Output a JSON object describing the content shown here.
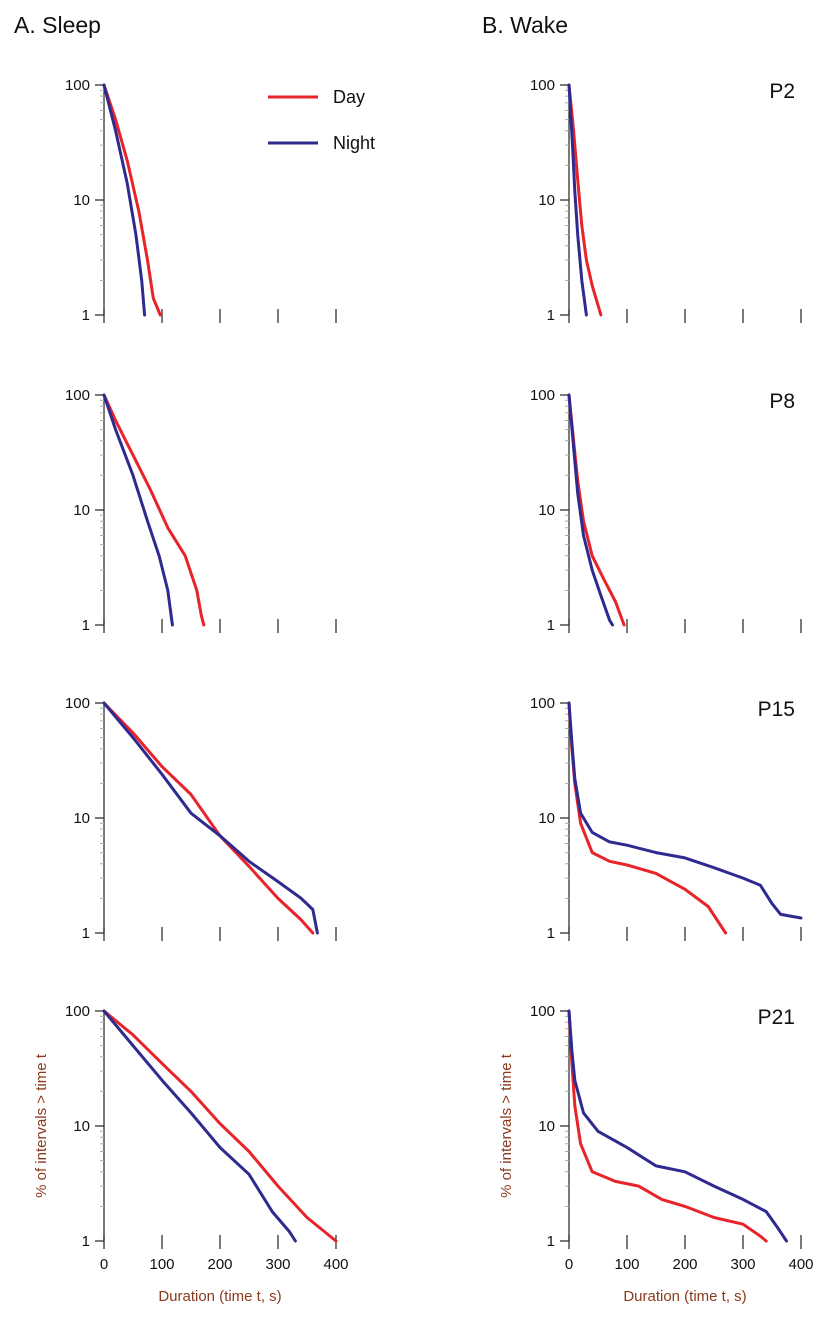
{
  "figure": {
    "column_titles": [
      "A. Sleep",
      "B. Wake"
    ],
    "legend": [
      {
        "label": "Day",
        "color": "#e8232a"
      },
      {
        "label": "Night",
        "color": "#2e2a8f"
      }
    ]
  },
  "chart_data": [
    {
      "type": "line",
      "panel": "A",
      "row": 0,
      "label": "",
      "xlim": [
        0,
        400
      ],
      "ylim": [
        1,
        100
      ],
      "yscale": "log",
      "xticks": [
        0,
        100,
        200,
        300,
        400
      ],
      "yticks": [
        1,
        10,
        100
      ],
      "xtick_labels": [
        "",
        "",
        "",
        "",
        ""
      ],
      "ytick_labels": [
        "1",
        "10",
        "100"
      ],
      "xlabel": "",
      "ylabel": "",
      "series": [
        {
          "name": "Day",
          "color": "#e8232a",
          "points": [
            [
              0,
              100
            ],
            [
              20,
              50
            ],
            [
              40,
              22
            ],
            [
              60,
              8
            ],
            [
              75,
              3
            ],
            [
              85,
              1.4
            ],
            [
              97,
              1
            ]
          ]
        },
        {
          "name": "Night",
          "color": "#2e2a8f",
          "points": [
            [
              0,
              100
            ],
            [
              20,
              40
            ],
            [
              40,
              14
            ],
            [
              55,
              5
            ],
            [
              65,
              2
            ],
            [
              70,
              1
            ]
          ]
        }
      ]
    },
    {
      "type": "line",
      "panel": "B",
      "row": 0,
      "label": "P2",
      "xlim": [
        0,
        400
      ],
      "ylim": [
        1,
        100
      ],
      "yscale": "log",
      "xticks": [
        0,
        100,
        200,
        300,
        400
      ],
      "yticks": [
        1,
        10,
        100
      ],
      "xtick_labels": [
        "",
        "",
        "",
        "",
        ""
      ],
      "ytick_labels": [
        "1",
        "10",
        "100"
      ],
      "xlabel": "",
      "ylabel": "",
      "series": [
        {
          "name": "Day",
          "color": "#e8232a",
          "points": [
            [
              0,
              100
            ],
            [
              8,
              40
            ],
            [
              15,
              15
            ],
            [
              22,
              6
            ],
            [
              30,
              3
            ],
            [
              40,
              1.8
            ],
            [
              55,
              1
            ]
          ]
        },
        {
          "name": "Night",
          "color": "#2e2a8f",
          "points": [
            [
              0,
              100
            ],
            [
              6,
              30
            ],
            [
              10,
              12
            ],
            [
              15,
              5
            ],
            [
              22,
              2
            ],
            [
              30,
              1
            ]
          ]
        }
      ]
    },
    {
      "type": "line",
      "panel": "A",
      "row": 1,
      "label": "",
      "xlim": [
        0,
        400
      ],
      "ylim": [
        1,
        100
      ],
      "yscale": "log",
      "xticks": [
        0,
        100,
        200,
        300,
        400
      ],
      "yticks": [
        1,
        10,
        100
      ],
      "xtick_labels": [
        "",
        "",
        "",
        "",
        ""
      ],
      "ytick_labels": [
        "1",
        "10",
        "100"
      ],
      "xlabel": "",
      "ylabel": "",
      "series": [
        {
          "name": "Day",
          "color": "#e8232a",
          "points": [
            [
              0,
              100
            ],
            [
              20,
              60
            ],
            [
              50,
              30
            ],
            [
              80,
              15
            ],
            [
              110,
              7
            ],
            [
              140,
              4
            ],
            [
              160,
              2
            ],
            [
              168,
              1.2
            ],
            [
              172,
              1
            ]
          ]
        },
        {
          "name": "Night",
          "color": "#2e2a8f",
          "points": [
            [
              0,
              100
            ],
            [
              20,
              50
            ],
            [
              50,
              20
            ],
            [
              75,
              8
            ],
            [
              95,
              4
            ],
            [
              110,
              2
            ],
            [
              118,
              1
            ]
          ]
        }
      ]
    },
    {
      "type": "line",
      "panel": "B",
      "row": 1,
      "label": "P8",
      "xlim": [
        0,
        400
      ],
      "ylim": [
        1,
        100
      ],
      "yscale": "log",
      "xticks": [
        0,
        100,
        200,
        300,
        400
      ],
      "yticks": [
        1,
        10,
        100
      ],
      "xtick_labels": [
        "",
        "",
        "",
        "",
        ""
      ],
      "ytick_labels": [
        "1",
        "10",
        "100"
      ],
      "xlabel": "",
      "ylabel": "",
      "series": [
        {
          "name": "Day",
          "color": "#e8232a",
          "points": [
            [
              0,
              100
            ],
            [
              8,
              40
            ],
            [
              15,
              18
            ],
            [
              25,
              8
            ],
            [
              40,
              4
            ],
            [
              60,
              2.5
            ],
            [
              80,
              1.6
            ],
            [
              95,
              1
            ]
          ]
        },
        {
          "name": "Night",
          "color": "#2e2a8f",
          "points": [
            [
              0,
              100
            ],
            [
              8,
              35
            ],
            [
              15,
              14
            ],
            [
              25,
              6
            ],
            [
              40,
              3
            ],
            [
              55,
              1.8
            ],
            [
              70,
              1.1
            ],
            [
              75,
              1
            ]
          ]
        }
      ]
    },
    {
      "type": "line",
      "panel": "A",
      "row": 2,
      "label": "",
      "xlim": [
        0,
        400
      ],
      "ylim": [
        1,
        100
      ],
      "yscale": "log",
      "xticks": [
        0,
        100,
        200,
        300,
        400
      ],
      "yticks": [
        1,
        10,
        100
      ],
      "xtick_labels": [
        "",
        "",
        "",
        "",
        ""
      ],
      "ytick_labels": [
        "1",
        "10",
        "100"
      ],
      "xlabel": "",
      "ylabel": "",
      "series": [
        {
          "name": "Day",
          "color": "#e8232a",
          "points": [
            [
              0,
              100
            ],
            [
              50,
              55
            ],
            [
              100,
              28
            ],
            [
              150,
              16
            ],
            [
              200,
              7
            ],
            [
              250,
              3.8
            ],
            [
              300,
              2
            ],
            [
              340,
              1.3
            ],
            [
              360,
              1
            ]
          ]
        },
        {
          "name": "Night",
          "color": "#2e2a8f",
          "points": [
            [
              0,
              100
            ],
            [
              50,
              50
            ],
            [
              100,
              24
            ],
            [
              150,
              11
            ],
            [
              200,
              7
            ],
            [
              250,
              4.2
            ],
            [
              300,
              2.8
            ],
            [
              340,
              2
            ],
            [
              360,
              1.6
            ],
            [
              368,
              1
            ]
          ]
        }
      ]
    },
    {
      "type": "line",
      "panel": "B",
      "row": 2,
      "label": "P15",
      "xlim": [
        0,
        400
      ],
      "ylim": [
        1,
        100
      ],
      "yscale": "log",
      "xticks": [
        0,
        100,
        200,
        300,
        400
      ],
      "yticks": [
        1,
        10,
        100
      ],
      "xtick_labels": [
        "",
        "",
        "",
        "",
        ""
      ],
      "ytick_labels": [
        "1",
        "10",
        "100"
      ],
      "xlabel": "",
      "ylabel": "",
      "series": [
        {
          "name": "Day",
          "color": "#e8232a",
          "points": [
            [
              0,
              100
            ],
            [
              5,
              40
            ],
            [
              10,
              20
            ],
            [
              20,
              9
            ],
            [
              40,
              5
            ],
            [
              70,
              4.2
            ],
            [
              100,
              3.9
            ],
            [
              150,
              3.3
            ],
            [
              200,
              2.4
            ],
            [
              240,
              1.7
            ],
            [
              270,
              1
            ]
          ]
        },
        {
          "name": "Night",
          "color": "#2e2a8f",
          "points": [
            [
              0,
              100
            ],
            [
              5,
              45
            ],
            [
              10,
              22
            ],
            [
              20,
              11
            ],
            [
              40,
              7.5
            ],
            [
              70,
              6.2
            ],
            [
              100,
              5.8
            ],
            [
              150,
              5
            ],
            [
              200,
              4.5
            ],
            [
              250,
              3.7
            ],
            [
              300,
              3
            ],
            [
              330,
              2.6
            ],
            [
              350,
              1.8
            ],
            [
              365,
              1.45
            ],
            [
              400,
              1.35
            ]
          ]
        }
      ]
    },
    {
      "type": "line",
      "panel": "A",
      "row": 3,
      "label": "",
      "xlim": [
        0,
        400
      ],
      "ylim": [
        1,
        100
      ],
      "yscale": "log",
      "xticks": [
        0,
        100,
        200,
        300,
        400
      ],
      "yticks": [
        1,
        10,
        100
      ],
      "xtick_labels": [
        "0",
        "100",
        "200",
        "300",
        "400"
      ],
      "ytick_labels": [
        "1",
        "10",
        "100"
      ],
      "xlabel": "Duration (time t, s)",
      "ylabel": "% of intervals > time t",
      "series": [
        {
          "name": "Day",
          "color": "#e8232a",
          "points": [
            [
              0,
              100
            ],
            [
              50,
              62
            ],
            [
              100,
              35
            ],
            [
              150,
              20
            ],
            [
              200,
              10.5
            ],
            [
              250,
              6
            ],
            [
              300,
              3
            ],
            [
              350,
              1.6
            ],
            [
              400,
              1
            ]
          ]
        },
        {
          "name": "Night",
          "color": "#2e2a8f",
          "points": [
            [
              0,
              100
            ],
            [
              50,
              50
            ],
            [
              100,
              25
            ],
            [
              150,
              13
            ],
            [
              200,
              6.5
            ],
            [
              250,
              3.8
            ],
            [
              290,
              1.8
            ],
            [
              320,
              1.2
            ],
            [
              330,
              1
            ]
          ]
        }
      ]
    },
    {
      "type": "line",
      "panel": "B",
      "row": 3,
      "label": "P21",
      "xlim": [
        0,
        400
      ],
      "ylim": [
        1,
        100
      ],
      "yscale": "log",
      "xticks": [
        0,
        100,
        200,
        300,
        400
      ],
      "yticks": [
        1,
        10,
        100
      ],
      "xtick_labels": [
        "0",
        "100",
        "200",
        "300",
        "400"
      ],
      "ytick_labels": [
        "1",
        "10",
        "100"
      ],
      "xlabel": "Duration (time t, s)",
      "ylabel": "% of intervals > time t",
      "series": [
        {
          "name": "Day",
          "color": "#e8232a",
          "points": [
            [
              0,
              100
            ],
            [
              5,
              35
            ],
            [
              10,
              15
            ],
            [
              20,
              7
            ],
            [
              40,
              4
            ],
            [
              80,
              3.3
            ],
            [
              120,
              3
            ],
            [
              160,
              2.3
            ],
            [
              200,
              2
            ],
            [
              250,
              1.6
            ],
            [
              300,
              1.4
            ],
            [
              330,
              1.1
            ],
            [
              340,
              1
            ]
          ]
        },
        {
          "name": "Night",
          "color": "#2e2a8f",
          "points": [
            [
              0,
              100
            ],
            [
              5,
              45
            ],
            [
              10,
              25
            ],
            [
              25,
              13
            ],
            [
              50,
              9
            ],
            [
              100,
              6.5
            ],
            [
              150,
              4.5
            ],
            [
              200,
              4
            ],
            [
              250,
              3
            ],
            [
              300,
              2.3
            ],
            [
              340,
              1.8
            ],
            [
              360,
              1.3
            ],
            [
              375,
              1
            ]
          ]
        }
      ]
    }
  ]
}
